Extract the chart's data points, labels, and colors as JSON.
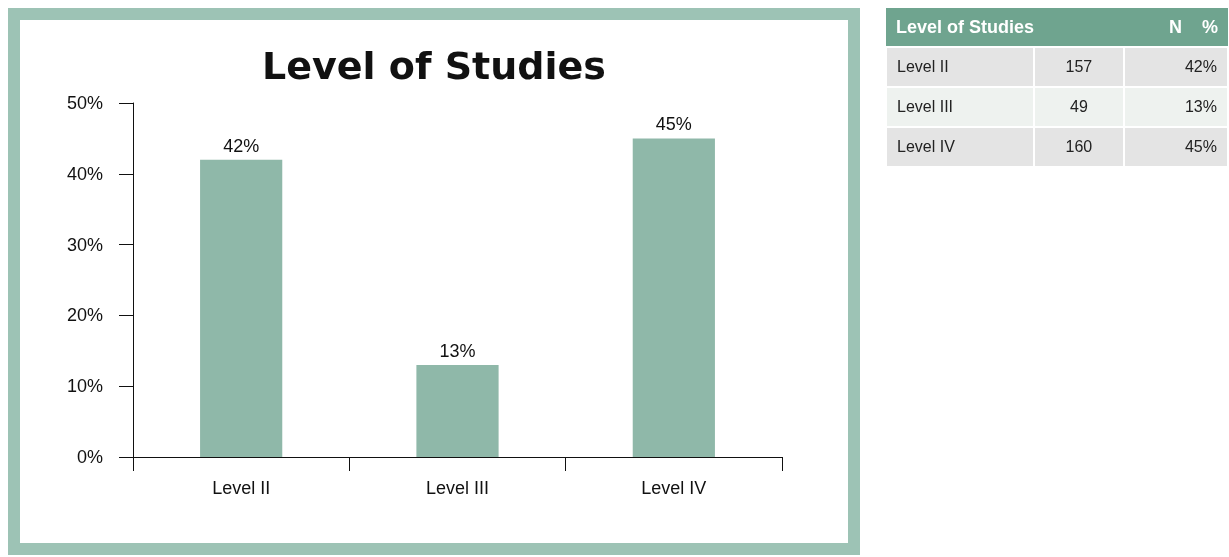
{
  "chart_data": [
    {
      "type": "bar",
      "title": "Level of Studies",
      "categories": [
        "Level II",
        "Level III",
        "Level IV"
      ],
      "values": [
        42,
        13,
        45
      ],
      "color": "#8fb8a9",
      "value_labels": [
        "42%",
        "13%",
        "45%"
      ],
      "ylim": [
        0,
        50
      ],
      "yticks": [
        {
          "value": 0,
          "label": "0%"
        },
        {
          "value": 10,
          "label": "10%"
        },
        {
          "value": 20,
          "label": "20%"
        },
        {
          "value": 30,
          "label": "30%"
        },
        {
          "value": 40,
          "label": "40%"
        },
        {
          "value": 50,
          "label": "50%"
        }
      ],
      "grid": false
    },
    {
      "type": "other",
      "xlabel": "Level of Studies",
      "data_labels": true,
      "categories": [
        "Level II",
        "Level III",
        "Level IV"
      ],
      "series": [
        {
          "name": "N",
          "values": [
            157,
            49,
            160
          ],
          "colors": [
            "#e4e4e4",
            "#eef2ef",
            "#e4e4e4"
          ]
        },
        {
          "name": "%",
          "values": [
            42,
            13,
            45
          ],
          "value_labels": [
            "42%",
            "13%",
            "45%"
          ],
          "colors": [
            "#e4e4e4",
            "#eef2ef",
            "#e4e4e4"
          ]
        }
      ]
    }
  ]
}
